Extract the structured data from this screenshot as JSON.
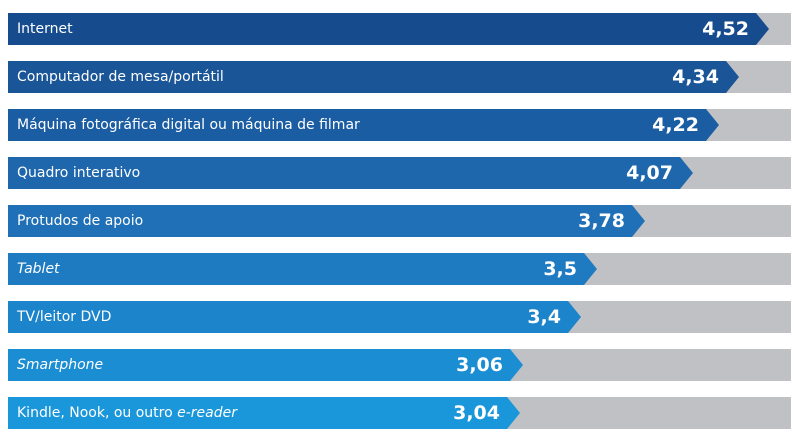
{
  "chart_data": {
    "type": "bar",
    "orientation": "horizontal",
    "categories": [
      "Internet",
      "Computador de mesa/portátil",
      "Máquina fotográfica digital ou máquina de filmar",
      "Quadro interativo",
      "Protudos de apoio",
      "Tablet",
      "TV/leitor DVD",
      "Smartphone",
      "Kindle, Nook, ou outro e-reader"
    ],
    "category_italic_parts": [
      "",
      "",
      "",
      "",
      "",
      "Tablet",
      "",
      "Smartphone",
      "e-reader"
    ],
    "values": [
      4.52,
      4.34,
      4.22,
      4.07,
      3.78,
      3.5,
      3.4,
      3.06,
      3.04
    ],
    "value_labels": [
      "4,52",
      "4,34",
      "4,22",
      "4,07",
      "3,78",
      "3,5",
      "3,4",
      "3,06",
      "3,04"
    ],
    "xlim": [
      0,
      4.65
    ],
    "grid": false,
    "legend": "none",
    "bar_colors": [
      "#164c8d",
      "#1a5598",
      "#1b5da2",
      "#1e67ad",
      "#1f70b7",
      "#1e7bc1",
      "#1c84ca",
      "#1b8dd2",
      "#1a96da"
    ],
    "track_color": "#c0c1c4"
  }
}
